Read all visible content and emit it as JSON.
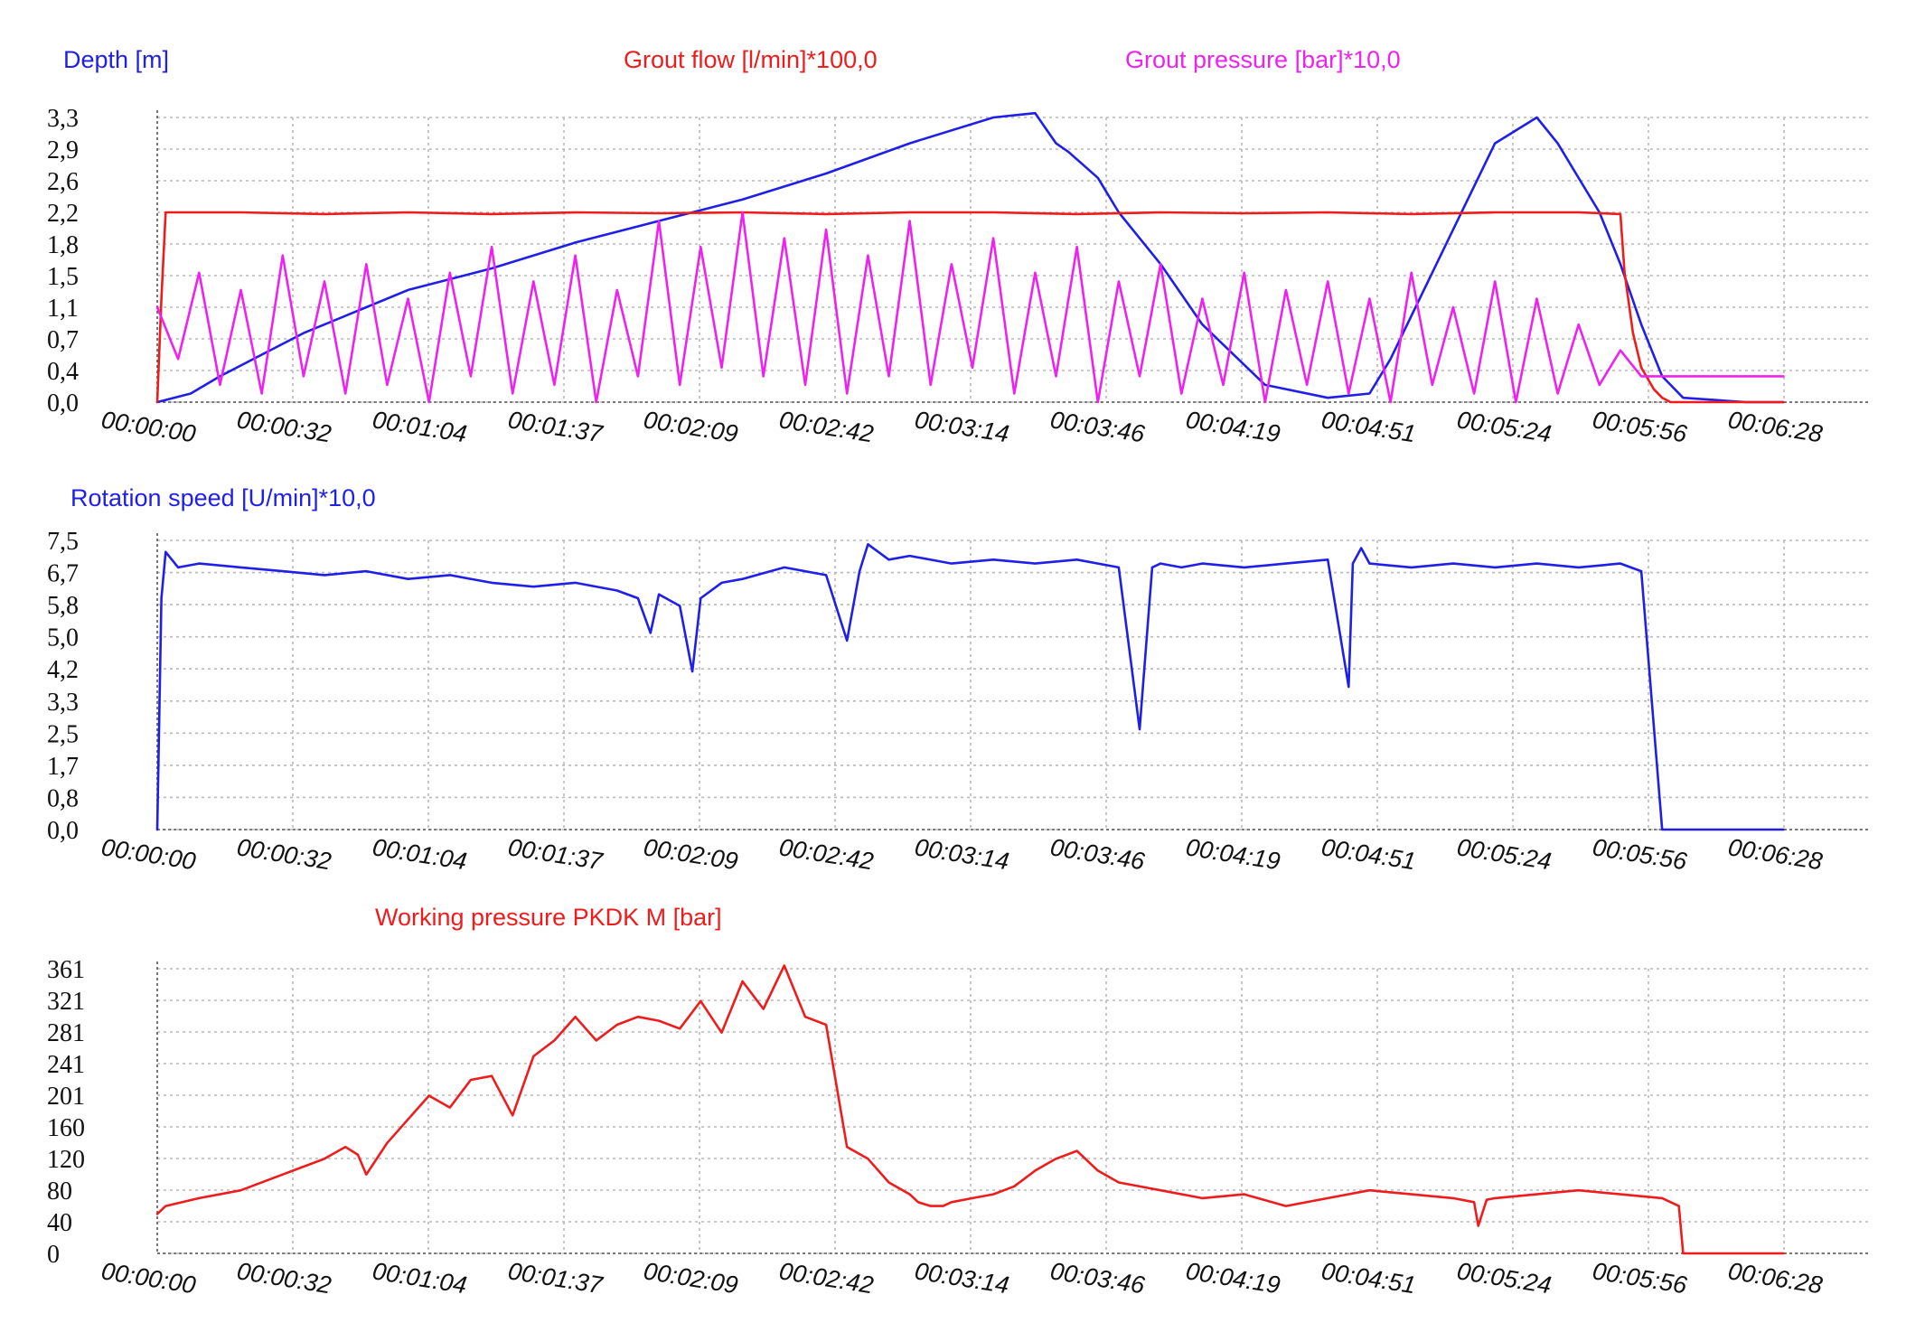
{
  "chart_data": [
    {
      "type": "line",
      "grid": true,
      "x_tick_labels": [
        "00:00:00",
        "00:00:32",
        "00:01:04",
        "00:01:37",
        "00:02:09",
        "00:02:42",
        "00:03:14",
        "00:03:46",
        "00:04:19",
        "00:04:51",
        "00:05:24",
        "00:05:56",
        "00:06:28"
      ],
      "y_tick_labels": [
        "0,0",
        "0,4",
        "0,7",
        "1,1",
        "1,5",
        "1,8",
        "2,2",
        "2,6",
        "2,9",
        "3,3"
      ],
      "ylim": [
        0,
        3.3
      ],
      "xlim": [
        0,
        390
      ],
      "series": [
        {
          "name": "Depth [m]",
          "color": "#1f1fe8",
          "x": [
            0,
            8,
            15,
            25,
            35,
            50,
            60,
            80,
            100,
            120,
            140,
            160,
            180,
            200,
            210,
            215,
            218,
            225,
            230,
            240,
            250,
            265,
            280,
            290,
            295,
            300,
            305,
            310,
            320,
            330,
            335,
            340,
            345,
            350,
            355,
            360,
            365,
            380,
            389
          ],
          "y": [
            0.0,
            0.1,
            0.3,
            0.55,
            0.8,
            1.1,
            1.3,
            1.55,
            1.85,
            2.1,
            2.35,
            2.65,
            3.0,
            3.3,
            3.35,
            3.0,
            2.9,
            2.6,
            2.2,
            1.6,
            0.9,
            0.2,
            0.05,
            0.1,
            0.5,
            1.0,
            1.5,
            2.0,
            3.0,
            3.3,
            3.0,
            2.6,
            2.2,
            1.6,
            0.9,
            0.3,
            0.05,
            0.0,
            0.0
          ]
        },
        {
          "name": "Grout flow [l/min]*100,0",
          "color": "#ee1c1c",
          "x": [
            0,
            1,
            2,
            20,
            40,
            60,
            80,
            100,
            120,
            140,
            160,
            180,
            200,
            220,
            240,
            260,
            280,
            300,
            320,
            340,
            350,
            351,
            353,
            355,
            358,
            360,
            362,
            365,
            380,
            389
          ],
          "y": [
            0.0,
            1.2,
            2.2,
            2.2,
            2.18,
            2.2,
            2.18,
            2.2,
            2.19,
            2.2,
            2.18,
            2.2,
            2.2,
            2.18,
            2.2,
            2.19,
            2.2,
            2.18,
            2.2,
            2.2,
            2.18,
            1.5,
            0.8,
            0.4,
            0.15,
            0.05,
            0.0,
            0.0,
            0.0,
            0.0
          ]
        },
        {
          "name": "Grout pressure [bar]*10,0",
          "color": "#ee22ee",
          "x": [
            0,
            5,
            10,
            15,
            20,
            25,
            30,
            35,
            40,
            45,
            50,
            55,
            60,
            65,
            70,
            75,
            80,
            85,
            90,
            95,
            100,
            105,
            110,
            115,
            120,
            125,
            130,
            135,
            140,
            145,
            150,
            155,
            160,
            165,
            170,
            175,
            180,
            185,
            190,
            195,
            200,
            205,
            210,
            215,
            220,
            225,
            230,
            235,
            240,
            245,
            250,
            255,
            260,
            265,
            270,
            275,
            280,
            285,
            290,
            295,
            300,
            305,
            310,
            315,
            320,
            325,
            330,
            335,
            340,
            345,
            350,
            355,
            360,
            365,
            380,
            389
          ],
          "y": [
            1.1,
            0.5,
            1.5,
            0.2,
            1.3,
            0.1,
            1.7,
            0.3,
            1.4,
            0.1,
            1.6,
            0.2,
            1.2,
            0.0,
            1.5,
            0.3,
            1.8,
            0.1,
            1.4,
            0.2,
            1.7,
            0.0,
            1.3,
            0.3,
            2.1,
            0.2,
            1.8,
            0.4,
            2.2,
            0.3,
            1.9,
            0.2,
            2.0,
            0.1,
            1.7,
            0.3,
            2.1,
            0.2,
            1.6,
            0.4,
            1.9,
            0.1,
            1.5,
            0.3,
            1.8,
            0.0,
            1.4,
            0.3,
            1.6,
            0.1,
            1.2,
            0.2,
            1.5,
            0.0,
            1.3,
            0.2,
            1.4,
            0.1,
            1.2,
            0.0,
            1.5,
            0.2,
            1.1,
            0.1,
            1.4,
            0.0,
            1.2,
            0.1,
            0.9,
            0.2,
            0.6,
            0.3,
            0.3,
            0.3,
            0.3,
            0.3
          ]
        }
      ]
    },
    {
      "type": "line",
      "grid": true,
      "x_tick_labels": [
        "00:00:00",
        "00:00:32",
        "00:01:04",
        "00:01:37",
        "00:02:09",
        "00:02:42",
        "00:03:14",
        "00:03:46",
        "00:04:19",
        "00:04:51",
        "00:05:24",
        "00:05:56",
        "00:06:28"
      ],
      "y_tick_labels": [
        "0,0",
        "0,8",
        "1,7",
        "2,5",
        "3,3",
        "4,2",
        "5,0",
        "5,8",
        "6,7",
        "7,5"
      ],
      "ylim": [
        0,
        7.5
      ],
      "xlim": [
        0,
        390
      ],
      "series": [
        {
          "name": "Rotation speed [U/min]*10,0",
          "color": "#1f1fe8",
          "x": [
            0,
            1,
            2,
            5,
            10,
            20,
            30,
            40,
            50,
            60,
            70,
            80,
            90,
            100,
            110,
            115,
            118,
            120,
            125,
            128,
            130,
            135,
            140,
            150,
            160,
            165,
            168,
            170,
            175,
            180,
            190,
            200,
            210,
            220,
            230,
            235,
            238,
            240,
            245,
            250,
            260,
            270,
            280,
            285,
            286,
            288,
            290,
            300,
            310,
            320,
            330,
            340,
            350,
            355,
            360,
            365,
            370,
            380,
            389
          ],
          "y": [
            0.0,
            6.0,
            7.2,
            6.8,
            6.9,
            6.8,
            6.7,
            6.6,
            6.7,
            6.5,
            6.6,
            6.4,
            6.3,
            6.4,
            6.2,
            6.0,
            5.1,
            6.1,
            5.8,
            4.1,
            6.0,
            6.4,
            6.5,
            6.8,
            6.6,
            4.9,
            6.7,
            7.4,
            7.0,
            7.1,
            6.9,
            7.0,
            6.9,
            7.0,
            6.8,
            2.6,
            6.8,
            6.9,
            6.8,
            6.9,
            6.8,
            6.9,
            7.0,
            3.7,
            6.9,
            7.3,
            6.9,
            6.8,
            6.9,
            6.8,
            6.9,
            6.8,
            6.9,
            6.7,
            0.0,
            0.0,
            0.0,
            0.0,
            0.0
          ]
        }
      ]
    },
    {
      "type": "line",
      "grid": true,
      "x_tick_labels": [
        "00:00:00",
        "00:00:32",
        "00:01:04",
        "00:01:37",
        "00:02:09",
        "00:02:42",
        "00:03:14",
        "00:03:46",
        "00:04:19",
        "00:04:51",
        "00:05:24",
        "00:05:56",
        "00:06:28"
      ],
      "y_tick_labels": [
        "0",
        "40",
        "80",
        "120",
        "160",
        "201",
        "241",
        "281",
        "321",
        "361"
      ],
      "ylim": [
        0,
        361
      ],
      "xlim": [
        0,
        390
      ],
      "series": [
        {
          "name": "Working pressure PKDK M [bar]",
          "color": "#ee1c1c",
          "x": [
            0,
            2,
            10,
            20,
            30,
            35,
            40,
            45,
            48,
            50,
            55,
            60,
            65,
            70,
            75,
            80,
            85,
            90,
            95,
            100,
            105,
            110,
            115,
            120,
            125,
            130,
            135,
            140,
            145,
            150,
            155,
            160,
            165,
            170,
            175,
            180,
            182,
            185,
            188,
            190,
            195,
            200,
            205,
            210,
            215,
            220,
            225,
            230,
            240,
            250,
            260,
            270,
            280,
            290,
            300,
            310,
            315,
            316,
            318,
            320,
            330,
            340,
            350,
            360,
            364,
            365,
            366,
            380,
            389
          ],
          "y": [
            50,
            60,
            70,
            80,
            100,
            110,
            120,
            135,
            125,
            100,
            140,
            170,
            200,
            185,
            220,
            225,
            175,
            250,
            270,
            300,
            270,
            290,
            300,
            295,
            285,
            320,
            280,
            345,
            310,
            365,
            300,
            290,
            135,
            120,
            90,
            75,
            65,
            60,
            60,
            65,
            70,
            75,
            85,
            105,
            120,
            130,
            105,
            90,
            80,
            70,
            75,
            60,
            70,
            80,
            75,
            70,
            65,
            35,
            68,
            70,
            75,
            80,
            75,
            70,
            60,
            0,
            0,
            0,
            0
          ]
        }
      ]
    }
  ],
  "panels": [
    {
      "titles": [
        {
          "text": "Depth [m]",
          "color": "#1f1fe8"
        },
        {
          "text": "Grout flow  [l/min]*100,0",
          "color": "#ee1c1c"
        },
        {
          "text": "Grout pressure [bar]*10,0",
          "color": "#ee22ee"
        }
      ]
    },
    {
      "titles": [
        {
          "text": "Rotation speed  [U/min]*10,0",
          "color": "#1f1fe8"
        }
      ]
    },
    {
      "titles": [
        {
          "text": "Working pressure PKDK M [bar]",
          "color": "#ee1c1c"
        }
      ]
    }
  ]
}
